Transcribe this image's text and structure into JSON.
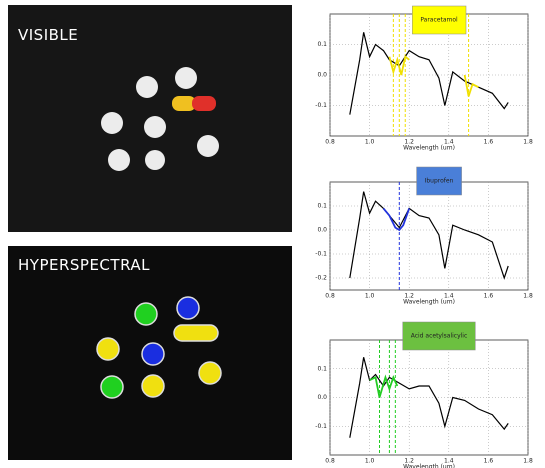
{
  "panels": [
    {
      "label": "VISIBLE"
    },
    {
      "label": "HYPERSPECTRAL"
    }
  ],
  "chart_data": [
    {
      "type": "line",
      "title": "Paracetamol",
      "title_color": "#ffff00",
      "xlabel": "Wavelength (um)",
      "xlim": [
        0.8,
        1.8
      ],
      "xticks": [
        0.8,
        {
          "value": 1,
          "label": "1.0"
        },
        1.2,
        1.4,
        1.6,
        1.8
      ],
      "ylim": [
        -0.2,
        0.2
      ],
      "yticks": [
        -0.1,
        {
          "value": 0,
          "label": "0.0"
        },
        0.1
      ],
      "grid": true,
      "series": [
        {
          "color": "#000000",
          "x": [
            0.9,
            0.95,
            0.97,
            1.0,
            1.03,
            1.07,
            1.1,
            1.15,
            1.2,
            1.25,
            1.3,
            1.35,
            1.38,
            1.42,
            1.48,
            1.55,
            1.62,
            1.68,
            1.7
          ],
          "values": [
            -0.13,
            0.05,
            0.14,
            0.06,
            0.1,
            0.08,
            0.05,
            0.03,
            0.08,
            0.06,
            0.05,
            -0.01,
            -0.1,
            0.01,
            -0.02,
            -0.04,
            -0.06,
            -0.11,
            -0.09
          ]
        },
        {
          "color": "#f0e000",
          "x": [
            1.1,
            1.12,
            1.14,
            1.16,
            1.18,
            1.2
          ],
          "values": [
            0.06,
            0.01,
            0.05,
            0.0,
            0.06,
            0.05
          ]
        },
        {
          "color": "#f0e000",
          "x": [
            1.48,
            1.5,
            1.52,
            1.55
          ],
          "values": [
            0.0,
            -0.07,
            -0.03,
            -0.04
          ]
        }
      ],
      "markers": [
        1.12,
        1.15,
        1.18,
        1.5
      ]
    },
    {
      "type": "line",
      "title": "Ibuprofen",
      "title_color": "#4a7fd8",
      "xlabel": "Wavelength (um)",
      "xlim": [
        0.8,
        1.8
      ],
      "xticks": [
        0.8,
        {
          "value": 1,
          "label": "1.0"
        },
        1.2,
        1.4,
        1.6,
        1.8
      ],
      "ylim": [
        -0.25,
        0.2
      ],
      "yticks": [
        -0.2,
        -0.1,
        {
          "value": 0,
          "label": "0.0"
        },
        0.1
      ],
      "grid": true,
      "series": [
        {
          "color": "#000000",
          "x": [
            0.9,
            0.95,
            0.97,
            1.0,
            1.03,
            1.07,
            1.1,
            1.15,
            1.2,
            1.25,
            1.3,
            1.35,
            1.38,
            1.42,
            1.48,
            1.55,
            1.62,
            1.68,
            1.7
          ],
          "values": [
            -0.2,
            0.05,
            0.16,
            0.07,
            0.12,
            0.09,
            0.06,
            0.01,
            0.09,
            0.06,
            0.05,
            -0.02,
            -0.16,
            0.02,
            0.0,
            -0.02,
            -0.05,
            -0.2,
            -0.15
          ]
        },
        {
          "color": "#2233dd",
          "x": [
            1.07,
            1.1,
            1.13,
            1.15,
            1.17,
            1.2
          ],
          "values": [
            0.09,
            0.06,
            0.01,
            0.0,
            0.02,
            0.09
          ]
        }
      ],
      "markers": [
        1.15
      ]
    },
    {
      "type": "line",
      "title": "Acid acetylsalicylic",
      "title_color": "#6cc040",
      "xlabel": "Wavelength (um)",
      "xlim": [
        0.8,
        1.8
      ],
      "xticks": [
        0.8,
        {
          "value": 1,
          "label": "1.0"
        },
        1.2,
        1.4,
        1.6,
        1.8
      ],
      "ylim": [
        -0.2,
        0.2
      ],
      "yticks": [
        -0.1,
        {
          "value": 0,
          "label": "0.0"
        },
        0.1
      ],
      "grid": true,
      "series": [
        {
          "color": "#000000",
          "x": [
            0.9,
            0.95,
            0.97,
            1.0,
            1.03,
            1.07,
            1.1,
            1.15,
            1.2,
            1.25,
            1.3,
            1.35,
            1.38,
            1.42,
            1.48,
            1.55,
            1.62,
            1.68,
            1.7
          ],
          "values": [
            -0.14,
            0.05,
            0.14,
            0.06,
            0.08,
            0.04,
            0.07,
            0.05,
            0.03,
            0.04,
            0.04,
            -0.02,
            -0.1,
            0.0,
            -0.01,
            -0.04,
            -0.06,
            -0.11,
            -0.09
          ]
        },
        {
          "color": "#22cc22",
          "x": [
            1.0,
            1.03,
            1.05,
            1.08,
            1.1,
            1.12,
            1.14
          ],
          "values": [
            0.06,
            0.07,
            0.0,
            0.07,
            0.03,
            0.07,
            0.04
          ]
        }
      ],
      "markers": [
        1.05,
        1.1,
        1.13
      ]
    }
  ]
}
